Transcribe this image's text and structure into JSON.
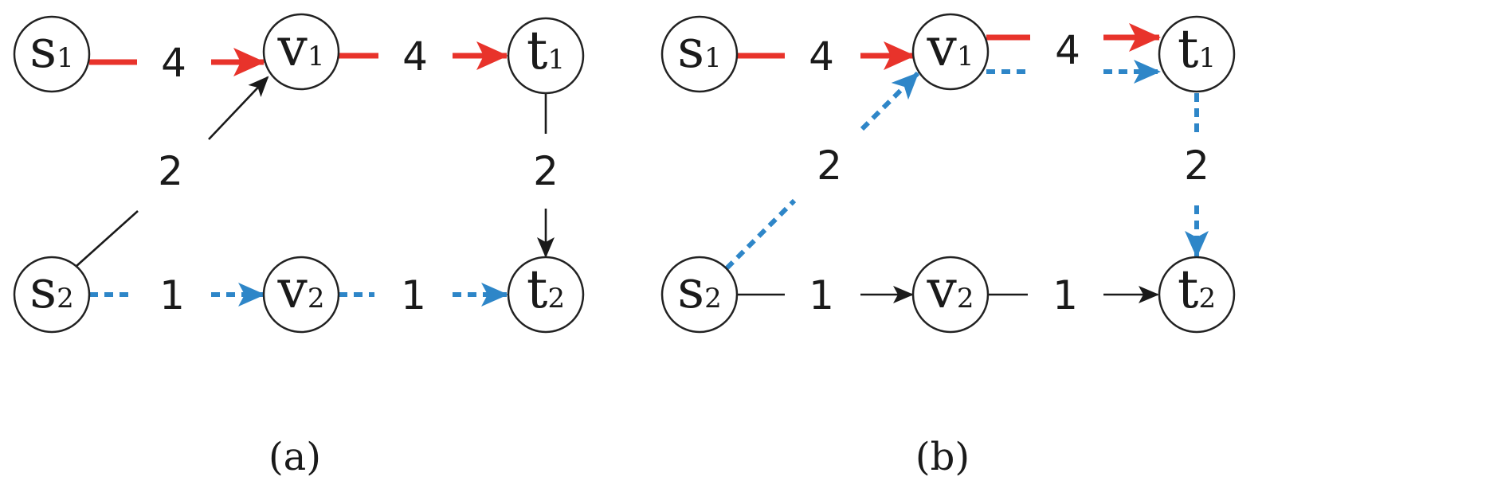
{
  "colors": {
    "red_path": "#e8332b",
    "blue_path": "#2e86c8",
    "plain": "#1a1a1a"
  },
  "panels": [
    {
      "caption": "(a)",
      "nodes": {
        "s1": {
          "letter": "s",
          "sub": "1"
        },
        "v1": {
          "letter": "v",
          "sub": "1"
        },
        "t1": {
          "letter": "t",
          "sub": "1"
        },
        "s2": {
          "letter": "s",
          "sub": "2"
        },
        "v2": {
          "letter": "v",
          "sub": "2"
        },
        "t2": {
          "letter": "t",
          "sub": "2"
        }
      },
      "edges": [
        {
          "from": "s1",
          "to": "v1",
          "weight": "4",
          "style": "red"
        },
        {
          "from": "v1",
          "to": "t1",
          "weight": "4",
          "style": "red"
        },
        {
          "from": "s2",
          "to": "v1",
          "weight": "2",
          "style": "black"
        },
        {
          "from": "t1",
          "to": "t2",
          "weight": "2",
          "style": "black"
        },
        {
          "from": "s2",
          "to": "v2",
          "weight": "1",
          "style": "blue-dashed"
        },
        {
          "from": "v2",
          "to": "t2",
          "weight": "1",
          "style": "blue-dashed"
        }
      ]
    },
    {
      "caption": "(b)",
      "nodes": {
        "s1": {
          "letter": "s",
          "sub": "1"
        },
        "v1": {
          "letter": "v",
          "sub": "1"
        },
        "t1": {
          "letter": "t",
          "sub": "1"
        },
        "s2": {
          "letter": "s",
          "sub": "2"
        },
        "v2": {
          "letter": "v",
          "sub": "2"
        },
        "t2": {
          "letter": "t",
          "sub": "2"
        }
      },
      "edges": [
        {
          "from": "s1",
          "to": "v1",
          "weight": "4",
          "style": "red"
        },
        {
          "from": "v1",
          "to": "t1",
          "weight": "4",
          "style": "red + blue-dashed"
        },
        {
          "from": "s2",
          "to": "v1",
          "weight": "2",
          "style": "blue-dashed"
        },
        {
          "from": "t1",
          "to": "t2",
          "weight": "2",
          "style": "blue-dashed"
        },
        {
          "from": "s2",
          "to": "v2",
          "weight": "1",
          "style": "black"
        },
        {
          "from": "v2",
          "to": "t2",
          "weight": "1",
          "style": "black"
        }
      ]
    }
  ]
}
